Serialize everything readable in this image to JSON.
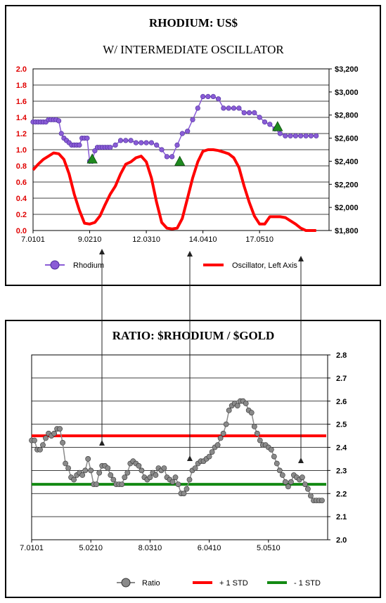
{
  "chart_data": [
    {
      "type": "line",
      "title": "RHODIUM: US$",
      "subtitle": "W/ INTERMEDIATE OSCILLATOR",
      "x_tick_labels": [
        "7.0101",
        "9.0210",
        "12.0310",
        "14.0410",
        "17.0510"
      ],
      "y_left": {
        "ylim": [
          0.0,
          2.0
        ],
        "ticks": [
          "0.0",
          "0.2",
          "0.4",
          "0.6",
          "0.8",
          "1.0",
          "1.2",
          "1.4",
          "1.6",
          "1.8",
          "2.0"
        ]
      },
      "y_right": {
        "ylim": [
          1800,
          3200
        ],
        "ticks": [
          "$1,800",
          "$2,000",
          "$2,200",
          "$2,400",
          "$2,600",
          "$2,800",
          "$3,000",
          "$3,200"
        ]
      },
      "grid": true,
      "legend_position": "bottom",
      "series": [
        {
          "name": "Rhodium",
          "axis": "right",
          "color": "#8a5cd6",
          "marker": "circle",
          "x": [
            2007.0,
            2007.1,
            2007.2,
            2007.3,
            2007.4,
            2007.5,
            2007.6,
            2007.7,
            2007.8,
            2007.9,
            2008.0,
            2008.1,
            2008.2,
            2008.3,
            2008.4,
            2008.5,
            2008.6,
            2008.7,
            2008.8,
            2008.9,
            2009.0,
            2009.1,
            2009.2,
            2009.3,
            2009.4,
            2009.5,
            2009.6,
            2009.7,
            2009.8,
            2009.9,
            2010.0,
            2010.2,
            2010.4,
            2010.6,
            2010.8,
            2011.0,
            2011.2,
            2011.4,
            2011.6,
            2011.8,
            2012.0,
            2012.2,
            2012.4,
            2012.6,
            2012.8,
            2013.0,
            2013.2,
            2013.4,
            2013.6,
            2013.8,
            2014.0,
            2014.2,
            2014.4,
            2014.6,
            2014.8,
            2015.0,
            2015.2,
            2015.4,
            2015.6,
            2015.8,
            2016.0,
            2016.2,
            2016.4,
            2016.6,
            2016.8,
            2017.0,
            2017.2,
            2017.4,
            2017.6,
            2017.8,
            2018.0
          ],
          "values": [
            2740,
            2740,
            2740,
            2740,
            2740,
            2740,
            2760,
            2760,
            2760,
            2760,
            2750,
            2640,
            2600,
            2580,
            2560,
            2540,
            2540,
            2540,
            2540,
            2600,
            2600,
            2600,
            2400,
            2400,
            2490,
            2520,
            2520,
            2520,
            2520,
            2520,
            2520,
            2540,
            2580,
            2580,
            2580,
            2560,
            2560,
            2560,
            2560,
            2540,
            2500,
            2440,
            2440,
            2540,
            2640,
            2660,
            2760,
            2860,
            2960,
            2960,
            2960,
            2940,
            2860,
            2860,
            2860,
            2860,
            2820,
            2820,
            2820,
            2780,
            2740,
            2720,
            2680,
            2640,
            2620,
            2620,
            2620,
            2620,
            2620,
            2620,
            2620
          ]
        },
        {
          "name": "Oscillator, Left Axis",
          "axis": "left",
          "color": "#ff0000",
          "x": [
            2007.0,
            2007.2,
            2007.4,
            2007.6,
            2007.8,
            2008.0,
            2008.2,
            2008.4,
            2008.6,
            2008.8,
            2009.0,
            2009.2,
            2009.4,
            2009.6,
            2009.8,
            2010.0,
            2010.2,
            2010.4,
            2010.6,
            2010.8,
            2011.0,
            2011.2,
            2011.4,
            2011.6,
            2011.8,
            2012.0,
            2012.2,
            2012.4,
            2012.6,
            2012.8,
            2013.0,
            2013.2,
            2013.4,
            2013.6,
            2013.8,
            2014.0,
            2014.2,
            2014.4,
            2014.6,
            2014.8,
            2015.0,
            2015.2,
            2015.4,
            2015.6,
            2015.8,
            2016.0,
            2016.2,
            2016.4,
            2016.6,
            2016.8,
            2017.0,
            2017.2,
            2017.4,
            2017.6,
            2017.8,
            2018.0
          ],
          "values": [
            0.75,
            0.82,
            0.88,
            0.92,
            0.96,
            0.95,
            0.88,
            0.7,
            0.45,
            0.25,
            0.09,
            0.08,
            0.1,
            0.18,
            0.32,
            0.45,
            0.55,
            0.7,
            0.82,
            0.85,
            0.9,
            0.92,
            0.85,
            0.65,
            0.35,
            0.1,
            0.03,
            0.02,
            0.03,
            0.15,
            0.4,
            0.65,
            0.85,
            0.98,
            1.0,
            1.0,
            0.99,
            0.97,
            0.95,
            0.9,
            0.78,
            0.55,
            0.35,
            0.18,
            0.08,
            0.08,
            0.17,
            0.17,
            0.17,
            0.16,
            0.12,
            0.08,
            0.03,
            0.0,
            0.0,
            0.0
          ]
        }
      ],
      "markers": {
        "name": "triangle markers",
        "color": "#1f8a1f",
        "x": [
          2009.3,
          2012.7,
          2016.5
        ],
        "y_right": [
          2420,
          2400,
          2700
        ]
      },
      "legend": [
        "Rhodium",
        "Oscillator, Left Axis"
      ]
    },
    {
      "type": "line",
      "title": "RATIO: $RHODIUM / $GOLD",
      "x_tick_labels": [
        "7.0101",
        "5.0210",
        "8.0310",
        "6.0410",
        "5.0510"
      ],
      "y_right": {
        "ylim": [
          2.0,
          2.8
        ],
        "ticks": [
          "2.0",
          "2.1",
          "2.2",
          "2.3",
          "2.4",
          "2.5",
          "2.6",
          "2.7",
          "2.8"
        ]
      },
      "grid": true,
      "legend_position": "bottom",
      "series": [
        {
          "name": "Ratio",
          "color": "#8a8a8a",
          "marker": "circle",
          "x": [
            2007.0,
            2007.1,
            2007.2,
            2007.3,
            2007.4,
            2007.5,
            2007.6,
            2007.7,
            2007.8,
            2007.9,
            2008.0,
            2008.1,
            2008.2,
            2008.3,
            2008.4,
            2008.5,
            2008.6,
            2008.7,
            2008.8,
            2008.9,
            2009.0,
            2009.1,
            2009.2,
            2009.3,
            2009.4,
            2009.5,
            2009.6,
            2009.7,
            2009.8,
            2009.9,
            2010.0,
            2010.1,
            2010.2,
            2010.3,
            2010.4,
            2010.5,
            2010.6,
            2010.7,
            2010.8,
            2010.9,
            2011.0,
            2011.1,
            2011.2,
            2011.3,
            2011.4,
            2011.5,
            2011.6,
            2011.7,
            2011.8,
            2011.9,
            2012.0,
            2012.1,
            2012.2,
            2012.3,
            2012.4,
            2012.5,
            2012.6,
            2012.7,
            2012.8,
            2012.9,
            2013.0,
            2013.1,
            2013.2,
            2013.3,
            2013.4,
            2013.5,
            2013.6,
            2013.7,
            2013.8,
            2013.9,
            2014.0,
            2014.1,
            2014.2,
            2014.3,
            2014.4,
            2014.5,
            2014.6,
            2014.7,
            2014.8,
            2014.9,
            2015.0,
            2015.1,
            2015.2,
            2015.3,
            2015.4,
            2015.5,
            2015.6,
            2015.7,
            2015.8,
            2015.9,
            2016.0,
            2016.1,
            2016.2,
            2016.3,
            2016.4,
            2016.5,
            2016.6,
            2016.7,
            2016.8,
            2016.9,
            2017.0,
            2017.1,
            2017.2,
            2017.3
          ],
          "values": [
            2.43,
            2.43,
            2.39,
            2.39,
            2.41,
            2.44,
            2.46,
            2.45,
            2.46,
            2.48,
            2.48,
            2.42,
            2.33,
            2.31,
            2.27,
            2.26,
            2.28,
            2.29,
            2.28,
            2.3,
            2.35,
            2.3,
            2.24,
            2.24,
            2.29,
            2.32,
            2.32,
            2.31,
            2.28,
            2.26,
            2.24,
            2.24,
            2.24,
            2.27,
            2.29,
            2.33,
            2.34,
            2.33,
            2.32,
            2.3,
            2.27,
            2.26,
            2.27,
            2.29,
            2.28,
            2.31,
            2.3,
            2.31,
            2.27,
            2.26,
            2.25,
            2.27,
            2.24,
            2.2,
            2.2,
            2.22,
            2.26,
            2.3,
            2.31,
            2.33,
            2.34,
            2.34,
            2.35,
            2.36,
            2.38,
            2.4,
            2.41,
            2.44,
            2.46,
            2.5,
            2.56,
            2.58,
            2.59,
            2.58,
            2.6,
            2.6,
            2.59,
            2.56,
            2.55,
            2.49,
            2.46,
            2.43,
            2.41,
            2.41,
            2.4,
            2.39,
            2.36,
            2.33,
            2.3,
            2.28,
            2.25,
            2.23,
            2.25,
            2.28,
            2.27,
            2.26,
            2.27,
            2.24,
            2.22,
            2.19,
            2.17,
            2.17,
            2.17,
            2.17
          ]
        },
        {
          "name": "+ 1 STD",
          "color": "#ff0000",
          "value": 2.45
        },
        {
          "name": "- 1 STD",
          "color": "#138a13",
          "value": 2.24
        }
      ],
      "legend": [
        "Ratio",
        "+ 1 STD",
        "- 1 STD"
      ]
    }
  ],
  "connector_arrows": {
    "color": "#222222",
    "count": 3
  }
}
